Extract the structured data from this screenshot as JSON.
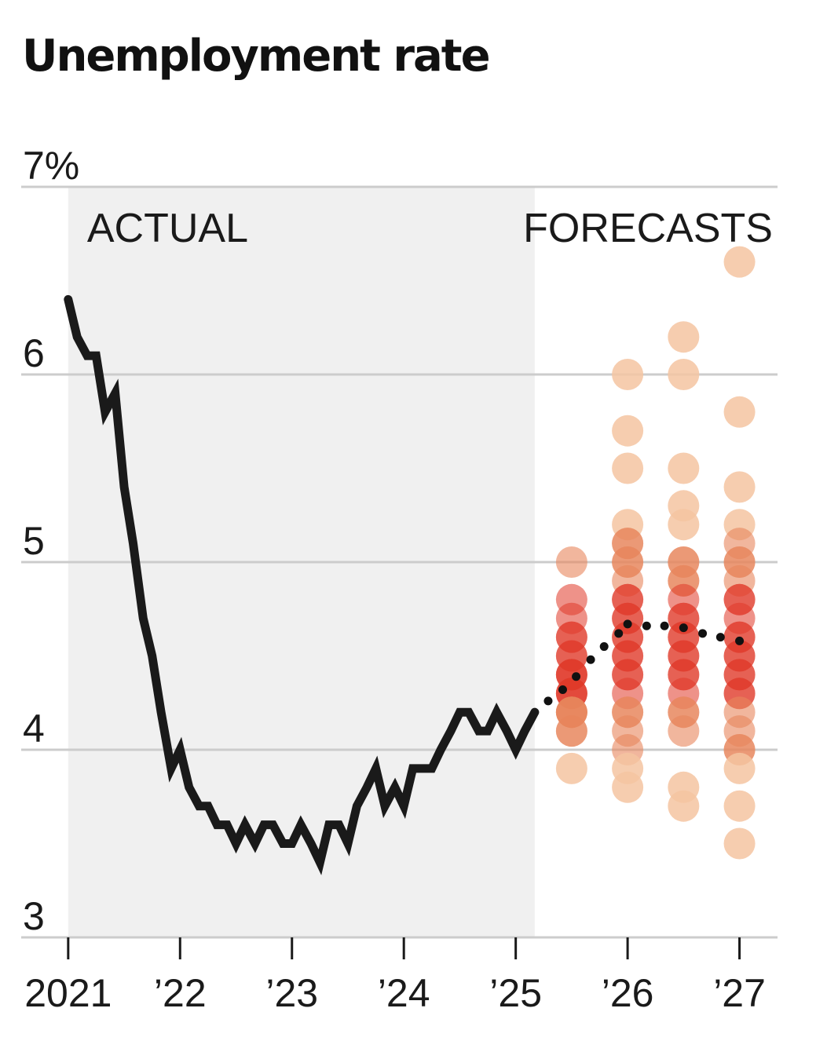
{
  "chart_data": {
    "type": "line",
    "title": "Unemployment rate",
    "ylim": [
      3,
      7
    ],
    "y_ticks": [
      {
        "value": 7,
        "label": "7%"
      },
      {
        "value": 6,
        "label": "6"
      },
      {
        "value": 5,
        "label": "5"
      },
      {
        "value": 4,
        "label": "4"
      },
      {
        "value": 3,
        "label": "3"
      }
    ],
    "x_ticks": [
      {
        "value": 2021,
        "label": "2021"
      },
      {
        "value": 2022,
        "label": "’22"
      },
      {
        "value": 2023,
        "label": "’23"
      },
      {
        "value": 2024,
        "label": "’24"
      },
      {
        "value": 2025,
        "label": "’25"
      },
      {
        "value": 2026,
        "label": "’26"
      },
      {
        "value": 2027,
        "label": "’27"
      }
    ],
    "xlim": [
      2020.58,
      2027.34
    ],
    "regions": [
      {
        "label": "ACTUAL",
        "x_start": 2021.0,
        "x_end": 2025.17
      },
      {
        "label": "FORECASTS"
      }
    ],
    "grid": true,
    "colors": {
      "actual_line": "#1a1a1a",
      "actual_background": "#f0f0f0",
      "gridline": "#cccccc",
      "forecast_light": "#f5c4a1",
      "forecast_mid": "#e8865c",
      "forecast_dark": "#e03828",
      "median_dots": "#111111"
    },
    "series": [
      {
        "kind": "actual",
        "points": [
          [
            2021.0,
            6.4
          ],
          [
            2021.08,
            6.2
          ],
          [
            2021.17,
            6.1
          ],
          [
            2021.25,
            6.1
          ],
          [
            2021.33,
            5.8
          ],
          [
            2021.42,
            5.9
          ],
          [
            2021.5,
            5.4
          ],
          [
            2021.58,
            5.1
          ],
          [
            2021.67,
            4.7
          ],
          [
            2021.75,
            4.5
          ],
          [
            2021.83,
            4.2
          ],
          [
            2021.92,
            3.9
          ],
          [
            2022.0,
            4.0
          ],
          [
            2022.08,
            3.8
          ],
          [
            2022.17,
            3.7
          ],
          [
            2022.25,
            3.7
          ],
          [
            2022.33,
            3.6
          ],
          [
            2022.42,
            3.6
          ],
          [
            2022.5,
            3.5
          ],
          [
            2022.58,
            3.6
          ],
          [
            2022.67,
            3.5
          ],
          [
            2022.75,
            3.6
          ],
          [
            2022.83,
            3.6
          ],
          [
            2022.92,
            3.5
          ],
          [
            2023.0,
            3.5
          ],
          [
            2023.08,
            3.6
          ],
          [
            2023.17,
            3.5
          ],
          [
            2023.25,
            3.4
          ],
          [
            2023.33,
            3.6
          ],
          [
            2023.42,
            3.6
          ],
          [
            2023.5,
            3.5
          ],
          [
            2023.58,
            3.7
          ],
          [
            2023.67,
            3.8
          ],
          [
            2023.75,
            3.9
          ],
          [
            2023.83,
            3.7
          ],
          [
            2023.92,
            3.8
          ],
          [
            2024.0,
            3.7
          ],
          [
            2024.08,
            3.9
          ],
          [
            2024.17,
            3.9
          ],
          [
            2024.25,
            3.9
          ],
          [
            2024.33,
            4.0
          ],
          [
            2024.42,
            4.1
          ],
          [
            2024.5,
            4.2
          ],
          [
            2024.58,
            4.2
          ],
          [
            2024.67,
            4.1
          ],
          [
            2024.75,
            4.1
          ],
          [
            2024.83,
            4.2
          ],
          [
            2024.92,
            4.1
          ],
          [
            2025.0,
            4.0
          ],
          [
            2025.08,
            4.1
          ],
          [
            2025.17,
            4.2
          ]
        ]
      },
      {
        "kind": "forecast_median",
        "points": [
          [
            2025.29,
            4.26
          ],
          [
            2025.42,
            4.32
          ],
          [
            2025.54,
            4.39
          ],
          [
            2025.67,
            4.48
          ],
          [
            2025.79,
            4.55
          ],
          [
            2025.92,
            4.62
          ],
          [
            2026.0,
            4.67
          ],
          [
            2026.17,
            4.66
          ],
          [
            2026.33,
            4.66
          ],
          [
            2026.5,
            4.65
          ],
          [
            2026.67,
            4.62
          ],
          [
            2026.83,
            4.6
          ],
          [
            2027.0,
            4.58
          ]
        ]
      }
    ],
    "forecast_dots": [
      {
        "x": 2025.5,
        "values": [
          5.0,
          4.8,
          4.7,
          4.6,
          4.6,
          4.5,
          4.5,
          4.4,
          4.4,
          4.4,
          4.3,
          4.3,
          4.3,
          4.2,
          4.2,
          4.2,
          4.2,
          4.1,
          4.1,
          3.9
        ]
      },
      {
        "x": 2026.0,
        "values": [
          6.0,
          5.7,
          5.5,
          5.2,
          5.1,
          5.1,
          5.0,
          5.0,
          4.9,
          4.8,
          4.8,
          4.7,
          4.7,
          4.6,
          4.6,
          4.5,
          4.5,
          4.4,
          4.4,
          4.3,
          4.2,
          4.2,
          4.1,
          4.0,
          3.9,
          3.8
        ]
      },
      {
        "x": 2026.5,
        "values": [
          6.2,
          6.0,
          5.5,
          5.3,
          5.2,
          5.0,
          5.0,
          4.9,
          4.9,
          4.8,
          4.7,
          4.7,
          4.6,
          4.6,
          4.5,
          4.5,
          4.4,
          4.4,
          4.3,
          4.2,
          4.2,
          4.1,
          3.8,
          3.7
        ]
      },
      {
        "x": 2027.0,
        "values": [
          6.6,
          5.8,
          5.4,
          5.2,
          5.1,
          5.0,
          5.0,
          4.9,
          4.8,
          4.8,
          4.7,
          4.6,
          4.6,
          4.5,
          4.5,
          4.4,
          4.4,
          4.3,
          4.3,
          4.2,
          4.1,
          4.0,
          4.0,
          3.9,
          3.7,
          3.5
        ]
      }
    ]
  }
}
